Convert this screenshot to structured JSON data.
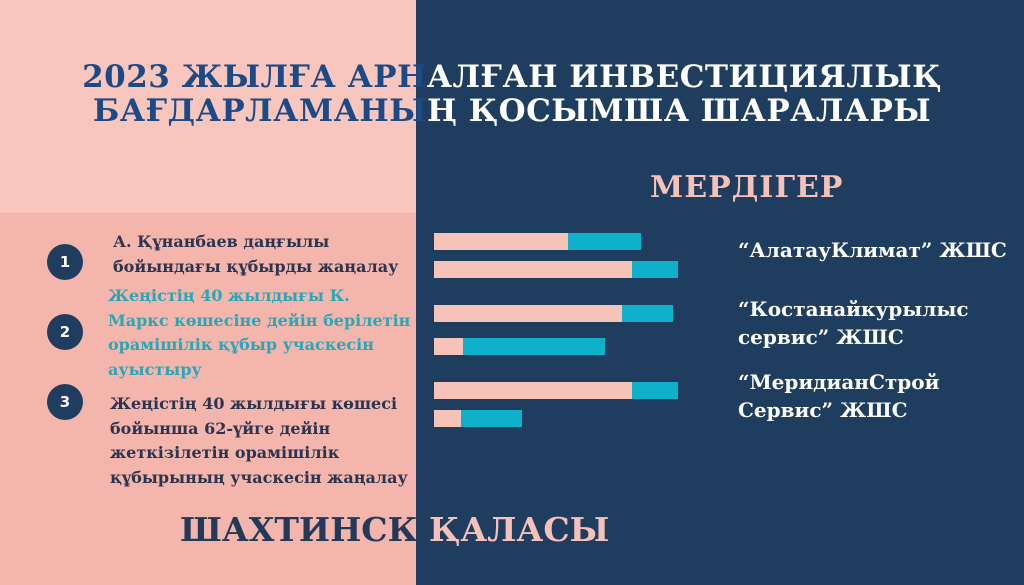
{
  "title": {
    "line1": "2023 ЖЫЛҒА АРНАЛҒАН ИНВЕСТИЦИЯЛЫҚ",
    "line2": "БАҒДАРЛАМАНЫҢ ҚОСЫМША ШАРАЛАРЫ"
  },
  "contractor_heading": "МЕРДІГЕР",
  "city": "ШАХТИНСК ҚАЛАСЫ",
  "items": [
    {
      "number": "1",
      "text": "А. Құнанбаев даңғылы\nбойындағы  құбырды жаңалау",
      "color": "#2b3550"
    },
    {
      "number": "2",
      "text": "Жеңістің 40 жылдығы К.\nМаркс көшесіне дейін берілетін\nорамішілік құбыр учаскесін\nауыстыру",
      "color": "#2aa7b6"
    },
    {
      "number": "3",
      "text": "Жеңістің 40 жылдығы көшесі\nбойынша 62-үйге дейін\nжеткізілетін орамішілік\nқұбырының учаскесін жаңалау",
      "color": "#2b3550"
    }
  ],
  "contractors": [
    {
      "name": "“АлатауКлимат” ЖШС"
    },
    {
      "name": "“Костанайкурылыс\nсервис” ЖШС"
    },
    {
      "name": "“МеридианСтрой\nСервис” ЖШС"
    }
  ],
  "bars": [
    {
      "pink_fraction": 0.55,
      "total_fraction": 0.85
    },
    {
      "pink_fraction": 0.81,
      "total_fraction": 1.0
    },
    {
      "pink_fraction": 0.77,
      "total_fraction": 0.98
    },
    {
      "pink_fraction": 0.12,
      "total_fraction": 0.7
    },
    {
      "pink_fraction": 0.81,
      "total_fraction": 1.0
    },
    {
      "pink_fraction": 0.11,
      "total_fraction": 0.36
    }
  ],
  "colors": {
    "navy": "#1f3d5f",
    "pink_light": "#f8c6bd",
    "pink": "#f4b5ac",
    "cyan": "#0fb0ca",
    "title_blue": "#1c4a86"
  }
}
